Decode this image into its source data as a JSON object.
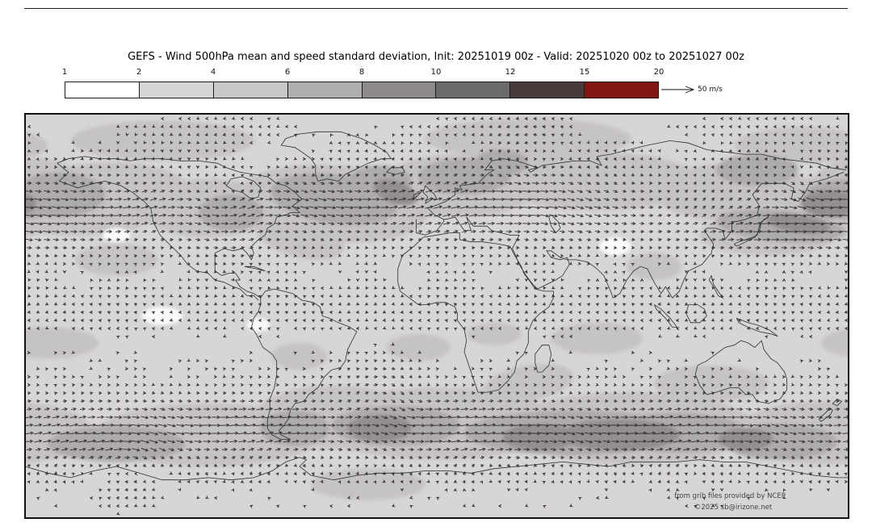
{
  "figure": {
    "title": "GEFS - Wind 500hPa mean and speed standard deviation, Init: 20251019 00z - Valid: 20251020 00z to 20251027 00z",
    "attribution_line1": "from grib files provided by NCEP",
    "attribution_line2": "©2025 sb@irizone.net"
  },
  "colorbar": {
    "unit_key_label": "50 m/s",
    "ticks": [
      "1",
      "2",
      "4",
      "6",
      "8",
      "10",
      "12",
      "15",
      "20"
    ],
    "segment_colors": [
      "#ffffff",
      "#d6d4d4",
      "#c9c7c7",
      "#b0adad",
      "#8f8a8a",
      "#6b6b6b",
      "#473b3b",
      "#801713"
    ]
  },
  "map": {
    "base_color": "#d7d5d5",
    "shade_colors": [
      "#c6c3c3",
      "#aeabab",
      "#938f90"
    ],
    "white_color": "#fbfbfb",
    "coast_color": "#2e2e2e",
    "arrow_color": "#2b272a",
    "shading_regions": [
      [
        -150,
        52,
        42,
        16,
        -5,
        1
      ],
      [
        -100,
        48,
        30,
        13,
        0,
        1
      ],
      [
        -45,
        50,
        42,
        17,
        5,
        1
      ],
      [
        10,
        58,
        35,
        14,
        0,
        1
      ],
      [
        70,
        60,
        45,
        13,
        0,
        1
      ],
      [
        130,
        55,
        35,
        13,
        0,
        1
      ],
      [
        170,
        48,
        28,
        14,
        0,
        1
      ],
      [
        -60,
        35,
        20,
        9,
        15,
        1
      ],
      [
        145,
        36,
        30,
        9,
        0,
        1
      ],
      [
        -140,
        25,
        18,
        7,
        0,
        1
      ],
      [
        -175,
        60,
        20,
        10,
        0,
        1
      ],
      [
        -120,
        78,
        40,
        9,
        0,
        1
      ],
      [
        40,
        79,
        45,
        9,
        0,
        1
      ],
      [
        160,
        76,
        30,
        8,
        0,
        1
      ],
      [
        70,
        -10,
        20,
        7,
        0,
        1
      ],
      [
        -170,
        -12,
        22,
        7,
        0,
        1
      ],
      [
        -8,
        -14,
        14,
        6,
        0,
        1
      ],
      [
        25,
        -8,
        12,
        5,
        0,
        1
      ],
      [
        95,
        22,
        12,
        6,
        0,
        1
      ],
      [
        -60,
        -18,
        12,
        6,
        0,
        1
      ],
      [
        0,
        -48,
        55,
        16,
        0,
        1
      ],
      [
        85,
        -50,
        55,
        16,
        0,
        1
      ],
      [
        170,
        -52,
        40,
        14,
        0,
        1
      ],
      [
        -100,
        -53,
        50,
        14,
        0,
        1
      ],
      [
        -45,
        -45,
        35,
        14,
        0,
        1
      ],
      [
        -30,
        -75,
        25,
        7,
        0,
        1
      ],
      [
        120,
        -30,
        25,
        8,
        0,
        1
      ],
      [
        40,
        -30,
        20,
        8,
        -10,
        1
      ],
      [
        -165,
        54,
        20,
        10,
        0,
        2
      ],
      [
        -45,
        52,
        28,
        11,
        8,
        2
      ],
      [
        12,
        62,
        20,
        8,
        0,
        2
      ],
      [
        150,
        40,
        28,
        7,
        5,
        2
      ],
      [
        178,
        52,
        18,
        9,
        0,
        2
      ],
      [
        -90,
        46,
        14,
        8,
        0,
        2
      ],
      [
        -25,
        60,
        14,
        7,
        0,
        2
      ],
      [
        60,
        -52,
        48,
        10,
        0,
        2
      ],
      [
        -18,
        -49,
        28,
        9,
        0,
        2
      ],
      [
        -140,
        -57,
        30,
        8,
        0,
        2
      ],
      [
        150,
        -56,
        25,
        8,
        0,
        2
      ],
      [
        -62,
        -50,
        15,
        8,
        0,
        2
      ],
      [
        105,
        -52,
        30,
        9,
        0,
        2
      ],
      [
        28,
        68,
        12,
        6,
        0,
        2
      ],
      [
        140,
        65,
        18,
        7,
        0,
        2
      ],
      [
        80,
        -53,
        26,
        7,
        0,
        3
      ],
      [
        45,
        -54,
        16,
        6,
        0,
        3
      ],
      [
        -25,
        -50,
        14,
        6,
        0,
        3
      ],
      [
        -18,
        55,
        10,
        5,
        20,
        3
      ],
      [
        172,
        50,
        13,
        6,
        0,
        3
      ],
      [
        158,
        41,
        14,
        4,
        8,
        3
      ],
      [
        135,
        -55,
        12,
        5,
        0,
        3
      ]
    ],
    "white_regions": [
      [
        78,
        31,
        7,
        4,
        0
      ],
      [
        -120,
        0,
        9,
        4,
        0
      ],
      [
        -78,
        -4,
        5,
        3,
        0
      ],
      [
        -140,
        36,
        6,
        3,
        0
      ]
    ],
    "wind_model": {
      "base_u": 1.2,
      "u_bands": [
        [
          47,
          13,
          12,
          [
            [
              2,
              0.8,
              0.4
            ],
            [
              3,
              -1.2,
              0.3
            ]
          ]
        ],
        [
          -50,
          11,
          17,
          [
            [
              3,
              1.0,
              0.22
            ],
            [
              4,
              0.3,
              0.18
            ]
          ]
        ],
        [
          3,
          13,
          -4.5,
          []
        ],
        [
          83,
          7,
          -3,
          [
            [
              3,
              0.5,
              0.5
            ]
          ]
        ],
        [
          -83,
          7,
          -2,
          []
        ]
      ],
      "local_jets": [
        [
          150,
          37,
          42,
          8,
          15
        ],
        [
          -45,
          50,
          38,
          9,
          10
        ],
        [
          15,
          52,
          32,
          9,
          7
        ],
        [
          -130,
          47,
          28,
          8,
          7
        ],
        [
          70,
          -52,
          50,
          9,
          9
        ],
        [
          -20,
          -48,
          38,
          9,
          8
        ],
        [
          -150,
          -55,
          38,
          8,
          7
        ],
        [
          -75,
          -45,
          20,
          8,
          6
        ]
      ],
      "vortices": [
        [
          -92,
          48,
          16,
          11,
          1
        ],
        [
          -25,
          -38,
          13,
          9,
          -1
        ],
        [
          -135,
          -66,
          12,
          8,
          -1
        ],
        [
          168,
          58,
          13,
          8,
          1
        ],
        [
          40,
          70,
          14,
          7,
          1
        ]
      ],
      "v_waves": [
        [
          3,
          1.5,
          5,
          50,
          16
        ],
        [
          4,
          0.5,
          4,
          -52,
          14
        ],
        [
          8,
          0.2,
          5,
          -70,
          6
        ],
        [
          2,
          2.5,
          3,
          70,
          10
        ],
        [
          5,
          1.0,
          2.5,
          10,
          12
        ]
      ]
    }
  }
}
